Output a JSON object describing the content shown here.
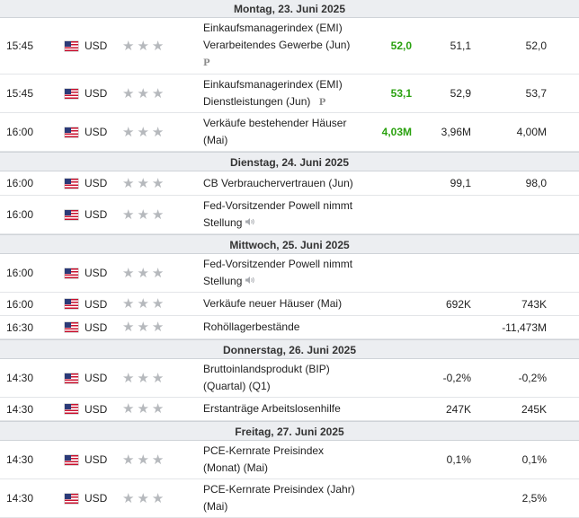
{
  "currency": "USD",
  "prelim_marker": "P",
  "days": [
    {
      "date": "Montag, 23. Juni 2025",
      "events": [
        {
          "time": "15:45",
          "event_lines": [
            "Einkaufsmanagerindex (EMI)",
            "Verarbeitendes Gewerbe (Jun)"
          ],
          "icon": "preliminary-icon",
          "actual": "52,0",
          "actual_color": "#2aa10f",
          "forecast": "51,1",
          "previous": "52,0"
        },
        {
          "time": "15:45",
          "event_lines": [
            "Einkaufsmanagerindex (EMI)",
            "Dienstleistungen (Jun)"
          ],
          "icon": "preliminary-icon",
          "actual": "53,1",
          "actual_color": "#2aa10f",
          "forecast": "52,9",
          "previous": "53,7"
        },
        {
          "time": "16:00",
          "event_lines": [
            "Verkäufe bestehender Häuser",
            "(Mai)"
          ],
          "icon": "",
          "actual": "4,03M",
          "actual_color": "#2aa10f",
          "forecast": "3,96M",
          "previous": "4,00M"
        }
      ]
    },
    {
      "date": "Dienstag, 24. Juni 2025",
      "events": [
        {
          "time": "16:00",
          "event_lines": [
            "CB Verbrauchervertrauen (Jun)"
          ],
          "icon": "",
          "actual": "",
          "actual_color": "",
          "forecast": "99,1",
          "previous": "98,0"
        },
        {
          "time": "16:00",
          "event_lines": [
            "Fed-Vorsitzender Powell nimmt",
            "Stellung"
          ],
          "icon": "speaker-icon",
          "actual": "",
          "actual_color": "",
          "forecast": "",
          "previous": ""
        }
      ]
    },
    {
      "date": "Mittwoch, 25. Juni 2025",
      "events": [
        {
          "time": "16:00",
          "event_lines": [
            "Fed-Vorsitzender Powell nimmt",
            "Stellung"
          ],
          "icon": "speaker-icon",
          "actual": "",
          "actual_color": "",
          "forecast": "",
          "previous": ""
        },
        {
          "time": "16:00",
          "event_lines": [
            "Verkäufe neuer Häuser (Mai)"
          ],
          "icon": "",
          "actual": "",
          "actual_color": "",
          "forecast": "692K",
          "previous": "743K"
        },
        {
          "time": "16:30",
          "event_lines": [
            "Rohöllagerbestände"
          ],
          "icon": "",
          "actual": "",
          "actual_color": "",
          "forecast": "",
          "previous": "-11,473M"
        }
      ]
    },
    {
      "date": "Donnerstag, 26. Juni 2025",
      "events": [
        {
          "time": "14:30",
          "event_lines": [
            "Bruttoinlandsprodukt (BIP)",
            "(Quartal) (Q1)"
          ],
          "icon": "",
          "actual": "",
          "actual_color": "",
          "forecast": "-0,2%",
          "previous": "-0,2%"
        },
        {
          "time": "14:30",
          "event_lines": [
            "Erstanträge Arbeitslosenhilfe"
          ],
          "icon": "",
          "actual": "",
          "actual_color": "",
          "forecast": "247K",
          "previous": "245K"
        }
      ]
    },
    {
      "date": "Freitag, 27. Juni 2025",
      "events": [
        {
          "time": "14:30",
          "event_lines": [
            "PCE-Kernrate Preisindex",
            "(Monat) (Mai)"
          ],
          "icon": "",
          "actual": "",
          "actual_color": "",
          "forecast": "0,1%",
          "previous": "0,1%"
        },
        {
          "time": "14:30",
          "event_lines": [
            "PCE-Kernrate Preisindex (Jahr)",
            "(Mai)"
          ],
          "icon": "",
          "actual": "",
          "actual_color": "",
          "forecast": "",
          "previous": "2,5%"
        }
      ]
    }
  ]
}
